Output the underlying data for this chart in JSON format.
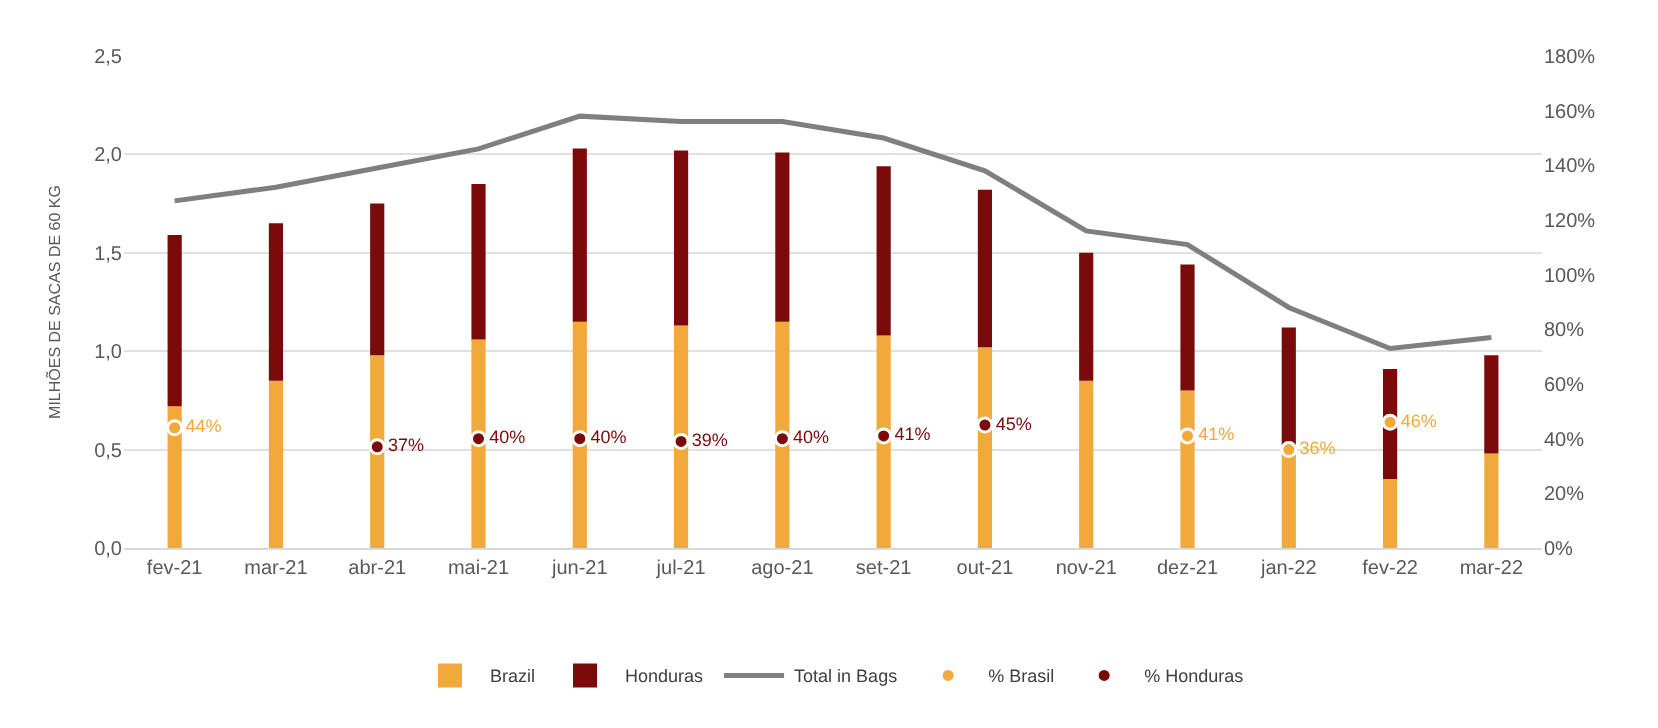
{
  "chart_data": {
    "type": "bar",
    "stacked": true,
    "ylabel": "MILHÕES DE SACAS DE 60 KG",
    "categories": [
      "fev-21",
      "mar-21",
      "abr-21",
      "mai-21",
      "jun-21",
      "jul-21",
      "ago-21",
      "set-21",
      "out-21",
      "nov-21",
      "dez-21",
      "jan-22",
      "fev-22",
      "mar-22"
    ],
    "series": [
      {
        "name": "Brazil",
        "color": "#f2a93b",
        "values": [
          0.72,
          0.85,
          0.98,
          1.06,
          1.15,
          1.13,
          1.15,
          1.08,
          1.02,
          0.85,
          0.8,
          0.48,
          0.35,
          0.48
        ]
      },
      {
        "name": "Honduras",
        "color": "#7b0a0a",
        "values": [
          0.87,
          0.8,
          0.77,
          0.79,
          0.88,
          0.89,
          0.86,
          0.86,
          0.8,
          0.65,
          0.64,
          0.64,
          0.56,
          0.5
        ]
      },
      {
        "name": "Total in Bags",
        "type": "line",
        "axis": "y2",
        "color": "#7f7f7f",
        "values": [
          127,
          132,
          139,
          146,
          158,
          156,
          156,
          150,
          138,
          116,
          111,
          88,
          73,
          77
        ]
      },
      {
        "name": "% Brasil",
        "type": "scatter",
        "marker": "circle",
        "axis": "y2",
        "color": "#f2a93b",
        "values": [
          44,
          null,
          null,
          null,
          null,
          null,
          null,
          null,
          null,
          null,
          41,
          36,
          46,
          null
        ],
        "value_labels": [
          "44%",
          null,
          null,
          null,
          null,
          null,
          null,
          null,
          null,
          null,
          "41%",
          "36%",
          "46%",
          null
        ]
      },
      {
        "name": "% Honduras",
        "type": "scatter",
        "marker": "circle",
        "axis": "y2",
        "color": "#7b0a0a",
        "values": [
          null,
          null,
          37,
          40,
          40,
          39,
          40,
          41,
          45,
          null,
          null,
          null,
          null,
          null
        ],
        "value_labels": [
          null,
          null,
          "37%",
          "40%",
          "40%",
          "39%",
          "40%",
          "41%",
          "45%",
          null,
          null,
          null,
          null,
          null
        ]
      }
    ],
    "ylim": [
      0,
      2.5
    ],
    "yticks": [
      {
        "value": 0,
        "label": "0,0"
      },
      {
        "value": 0.5,
        "label": "0,5"
      },
      {
        "value": 1,
        "label": "1,0"
      },
      {
        "value": 1.5,
        "label": "1,5"
      },
      {
        "value": 2,
        "label": "2,0"
      },
      {
        "value": 2.5,
        "label": "2,5"
      }
    ],
    "y2lim": [
      0,
      180
    ],
    "y2ticks": [
      {
        "value": 0,
        "label": "0%"
      },
      {
        "value": 20,
        "label": "20%"
      },
      {
        "value": 40,
        "label": "40%"
      },
      {
        "value": 60,
        "label": "60%"
      },
      {
        "value": 80,
        "label": "80%"
      },
      {
        "value": 100,
        "label": "100%"
      },
      {
        "value": 120,
        "label": "120%"
      },
      {
        "value": 140,
        "label": "140%"
      },
      {
        "value": 160,
        "label": "160%"
      },
      {
        "value": 180,
        "label": "180%"
      }
    ],
    "grid": "y",
    "legend": "bottom",
    "marker": "none"
  }
}
